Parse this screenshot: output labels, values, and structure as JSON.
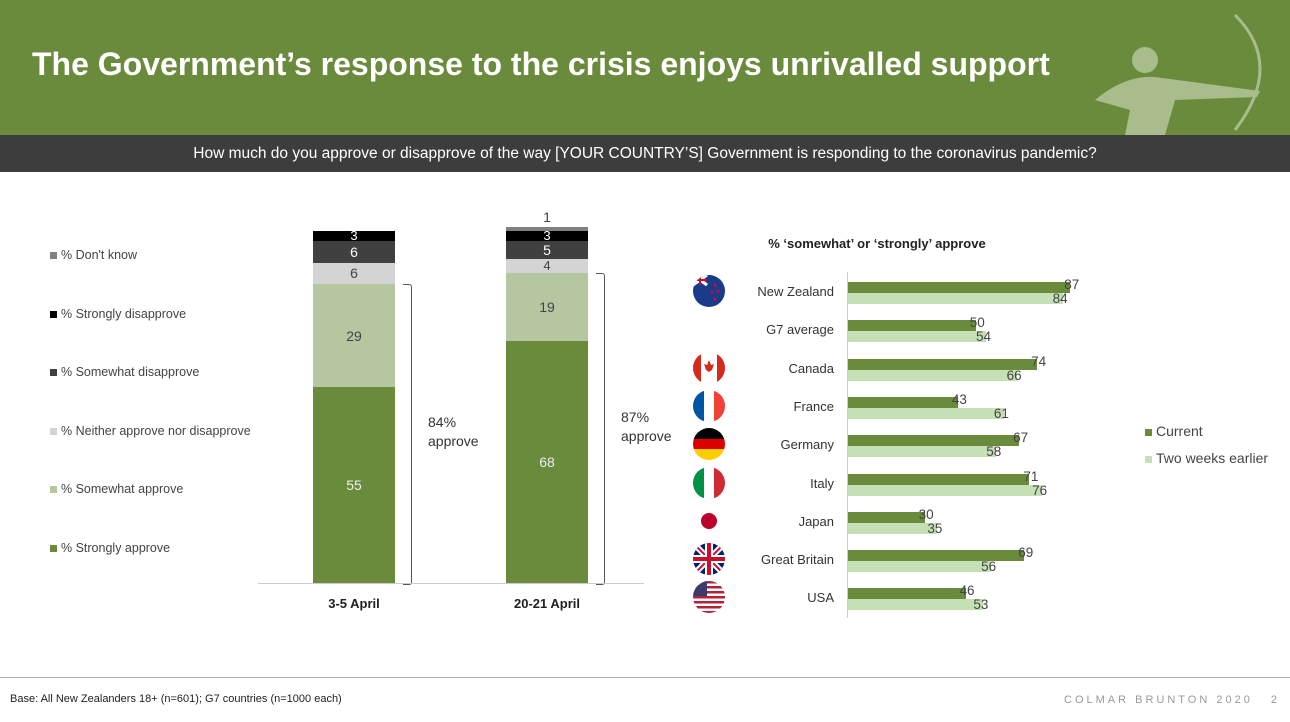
{
  "header": {
    "title": "The Government’s response to the crisis enjoys unrivalled support",
    "question": "How much do you approve or disapprove of the way [YOUR COUNTRY’S] Government is responding to the coronavirus pandemic?"
  },
  "footer": {
    "base": "Base: All New Zealanders 18+ (n=601); G7 countries (n=1000 each)",
    "brand": "COLMAR BRUNTON 2020",
    "page": "2"
  },
  "chart_data": [
    {
      "type": "bar",
      "stacked": true,
      "categories": [
        "3-5 April",
        "20-21 April"
      ],
      "series": [
        {
          "name": "% Strongly approve",
          "color": "#6a8a3c",
          "values": [
            55,
            68
          ]
        },
        {
          "name": "% Somewhat approve",
          "color": "#b5c7a0",
          "values": [
            29,
            19
          ]
        },
        {
          "name": "% Neither approve nor disapprove",
          "color": "#d4d4d4",
          "values": [
            6,
            4
          ]
        },
        {
          "name": "% Somewhat disapprove",
          "color": "#404040",
          "values": [
            6,
            5
          ]
        },
        {
          "name": "% Strongly disapprove",
          "color": "#000000",
          "values": [
            3,
            3
          ]
        },
        {
          "name": "% Don't know",
          "color": "#808080",
          "values": [
            null,
            1
          ]
        }
      ],
      "annotations": [
        {
          "text": "84%",
          "sub": "approve"
        },
        {
          "text": "87%",
          "sub": "approve"
        }
      ]
    },
    {
      "type": "bar",
      "orientation": "horizontal",
      "title": "% ‘somewhat’ or ‘strongly’ approve",
      "categories": [
        "New Zealand",
        "G7 average",
        "Canada",
        "France",
        "Germany",
        "Italy",
        "Japan",
        "Great Britain",
        "USA"
      ],
      "series": [
        {
          "name": "Current",
          "color": "#6a8a3c",
          "values": [
            87,
            50,
            74,
            43,
            67,
            71,
            30,
            69,
            46
          ]
        },
        {
          "name": "Two weeks earlier",
          "color": "#c5e0b4",
          "values": [
            84,
            54,
            66,
            61,
            58,
            76,
            35,
            56,
            53
          ]
        }
      ],
      "xlim": [
        0,
        100
      ]
    }
  ]
}
